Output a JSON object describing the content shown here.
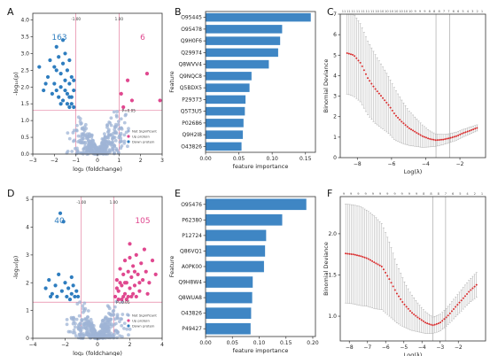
{
  "panels": {
    "A": "A",
    "B": "B",
    "C": "C",
    "D": "D",
    "E": "E",
    "F": "F"
  },
  "colors": {
    "not_significant": "#9fb4d6",
    "up": "#e0488f",
    "down": "#2e7dbf",
    "bar": "#3f86c4",
    "cv_point": "#d62728",
    "cv_error": "#a8a8a8",
    "threshold": "#e06a8f",
    "lambda_line": "#9a9a9a"
  },
  "chart_data": [
    {
      "id": "A",
      "type": "scatter",
      "xlabel": "log₂ (foldchange)",
      "ylabel": "-log₁₀(p)",
      "xlim": [
        -3,
        3
      ],
      "ylim": [
        0,
        4.2
      ],
      "xticks": [
        "−3",
        "−2",
        "−1",
        "0",
        "1",
        "2",
        "3"
      ],
      "yticks": [
        "0.0",
        "0.5",
        "1.0",
        "1.5",
        "2.0",
        "2.5",
        "3.0",
        "3.5",
        "4.0"
      ],
      "count_down": "163",
      "count_up": "6",
      "fc_threshold_labels": [
        "-1.00",
        "1.00"
      ],
      "fc_thresholds": [
        -1,
        1
      ],
      "p_threshold_label": "P=0.05",
      "p_threshold": 1.301,
      "legend": [
        "Not Significant",
        "Up protein",
        "Down protein"
      ],
      "up_points": [
        [
          1.1,
          1.8
        ],
        [
          1.4,
          2.2
        ],
        [
          1.6,
          1.6
        ],
        [
          2.3,
          2.4
        ],
        [
          2.9,
          1.6
        ],
        [
          1.2,
          1.4
        ]
      ],
      "down_points": [
        [
          -2.7,
          2.6
        ],
        [
          -2.5,
          1.9
        ],
        [
          -2.3,
          2.3
        ],
        [
          -2.2,
          2.8
        ],
        [
          -2.1,
          1.8
        ],
        [
          -2.0,
          2.1
        ],
        [
          -1.9,
          3.2
        ],
        [
          -1.9,
          2.5
        ],
        [
          -1.8,
          1.7
        ],
        [
          -1.8,
          2.9
        ],
        [
          -1.7,
          2.0
        ],
        [
          -1.7,
          2.4
        ],
        [
          -1.6,
          1.6
        ],
        [
          -1.6,
          3.4
        ],
        [
          -1.6,
          2.7
        ],
        [
          -1.5,
          1.9
        ],
        [
          -1.5,
          2.2
        ],
        [
          -1.5,
          3.0
        ],
        [
          -1.4,
          1.5
        ],
        [
          -1.4,
          2.5
        ],
        [
          -1.4,
          1.8
        ],
        [
          -1.3,
          2.1
        ],
        [
          -1.3,
          1.4
        ],
        [
          -1.3,
          2.8
        ],
        [
          -1.2,
          1.7
        ],
        [
          -1.2,
          2.3
        ],
        [
          -1.2,
          1.5
        ],
        [
          -1.1,
          1.9
        ],
        [
          -1.1,
          1.4
        ],
        [
          -1.1,
          2.2
        ],
        [
          -2.4,
          2.1
        ],
        [
          -2.0,
          2.6
        ],
        [
          -1.7,
          1.5
        ],
        [
          -1.9,
          1.9
        ],
        [
          -1.3,
          1.7
        ]
      ]
    },
    {
      "id": "B",
      "type": "bar",
      "orientation": "horizontal",
      "xlabel": "feature importance",
      "ylabel": "Feature",
      "xlim": [
        0,
        0.165
      ],
      "xticks": [
        "0.00",
        "0.05",
        "0.10",
        "0.15"
      ],
      "categories": [
        "O95445",
        "O95478",
        "Q9H0F6",
        "Q29974",
        "Q8WVV4",
        "Q9NQC8",
        "Q5BDX5",
        "P29373",
        "Q5T3U5",
        "P02686",
        "Q9H2I8",
        "O43826"
      ],
      "values": [
        0.158,
        0.115,
        0.112,
        0.109,
        0.095,
        0.069,
        0.066,
        0.06,
        0.059,
        0.057,
        0.056,
        0.054
      ]
    },
    {
      "id": "C",
      "type": "line",
      "xlabel": "Log(λ)",
      "ylabel": "Binomial Deviance",
      "xlim": [
        -9,
        -0.5
      ],
      "ylim": [
        0,
        7
      ],
      "xticks": [
        "−8",
        "−6",
        "−4",
        "−2"
      ],
      "yticks": [
        "0",
        "1",
        "2",
        "3",
        "4",
        "5",
        "6",
        "7"
      ],
      "top_labels": [
        "11",
        "11",
        "11",
        "11",
        "11",
        "11",
        "11",
        "10",
        "10",
        "10",
        "10",
        "10",
        "10",
        "10",
        "10",
        "9",
        "9",
        "9",
        "8",
        "8",
        "8",
        "7",
        "7",
        "6",
        "6",
        "5",
        "4",
        "3",
        "2",
        "1"
      ],
      "lambda_min": -3.4,
      "lambda_1se": -2.6,
      "x": [
        -8.6,
        -8.2,
        -7.8,
        -7.4,
        -7.0,
        -6.6,
        -6.2,
        -5.8,
        -5.4,
        -5.0,
        -4.6,
        -4.2,
        -3.8,
        -3.4,
        -3.0,
        -2.6,
        -2.2,
        -1.8,
        -1.4,
        -1.0
      ],
      "y": [
        5.1,
        5.0,
        4.6,
        3.9,
        3.4,
        3.0,
        2.6,
        2.1,
        1.75,
        1.45,
        1.25,
        1.05,
        0.92,
        0.85,
        0.88,
        0.95,
        1.05,
        1.2,
        1.32,
        1.45
      ],
      "err": [
        2.0,
        2.0,
        1.9,
        1.8,
        1.7,
        1.55,
        1.4,
        1.25,
        1.05,
        0.85,
        0.7,
        0.55,
        0.4,
        0.3,
        0.25,
        0.22,
        0.2,
        0.18,
        0.17,
        0.15
      ]
    },
    {
      "id": "D",
      "type": "scatter",
      "xlabel": "log₂ (foldchange)",
      "ylabel": "-log₁₀(p)",
      "xlim": [
        -4,
        4
      ],
      "ylim": [
        0,
        5.1
      ],
      "xticks": [
        "−4",
        "−2",
        "0",
        "2",
        "4"
      ],
      "yticks": [
        "0",
        "1",
        "2",
        "3",
        "4",
        "5"
      ],
      "count_down": "40",
      "count_up": "105",
      "fc_threshold_labels": [
        "-1.00",
        "1.00"
      ],
      "fc_thresholds": [
        -1,
        1
      ],
      "p_threshold_label": "P=0.05",
      "p_threshold": 1.301,
      "legend": [
        "Not Significant",
        "Up protein",
        "Down protein"
      ],
      "up_points": [
        [
          1.1,
          1.5
        ],
        [
          1.2,
          2.1
        ],
        [
          1.3,
          1.7
        ],
        [
          1.4,
          2.5
        ],
        [
          1.5,
          1.4
        ],
        [
          1.5,
          1.9
        ],
        [
          1.6,
          2.3
        ],
        [
          1.7,
          1.6
        ],
        [
          1.7,
          2.8
        ],
        [
          1.8,
          2.0
        ],
        [
          1.9,
          1.5
        ],
        [
          1.9,
          2.4
        ],
        [
          2.0,
          1.8
        ],
        [
          2.0,
          2.9
        ],
        [
          2.1,
          2.2
        ],
        [
          2.2,
          1.6
        ],
        [
          2.2,
          2.6
        ],
        [
          2.3,
          1.9
        ],
        [
          2.4,
          3.0
        ],
        [
          2.5,
          2.3
        ],
        [
          2.6,
          1.7
        ],
        [
          2.7,
          2.7
        ],
        [
          2.8,
          2.1
        ],
        [
          2.9,
          3.2
        ],
        [
          3.0,
          2.4
        ],
        [
          3.2,
          2.0
        ],
        [
          3.4,
          2.8
        ],
        [
          3.6,
          2.3
        ],
        [
          1.3,
          1.4
        ],
        [
          1.6,
          1.5
        ],
        [
          1.8,
          1.4
        ],
        [
          2.1,
          1.5
        ],
        [
          2.4,
          1.5
        ],
        [
          1.2,
          1.8
        ],
        [
          1.4,
          2.0
        ],
        [
          2.6,
          2.0
        ],
        [
          3.1,
          1.6
        ],
        [
          2.0,
          3.4
        ],
        [
          1.7,
          2.0
        ],
        [
          2.3,
          2.4
        ]
      ],
      "down_points": [
        [
          -3.2,
          1.8
        ],
        [
          -3.0,
          2.1
        ],
        [
          -2.8,
          1.6
        ],
        [
          -2.6,
          1.9
        ],
        [
          -2.5,
          1.5
        ],
        [
          -2.4,
          2.3
        ],
        [
          -2.2,
          1.7
        ],
        [
          -2.0,
          2.0
        ],
        [
          -1.9,
          1.5
        ],
        [
          -1.8,
          1.8
        ],
        [
          -1.7,
          1.4
        ],
        [
          -1.6,
          1.6
        ],
        [
          -1.5,
          1.9
        ],
        [
          -1.4,
          1.5
        ],
        [
          -1.3,
          1.7
        ],
        [
          -2.3,
          4.5
        ],
        [
          -2.1,
          4.2
        ],
        [
          -2.9,
          1.5
        ],
        [
          -1.6,
          2.2
        ],
        [
          -1.2,
          1.5
        ]
      ]
    },
    {
      "id": "E",
      "type": "bar",
      "orientation": "horizontal",
      "xlabel": "feature importance",
      "ylabel": "Feature",
      "xlim": [
        0,
        0.205
      ],
      "xticks": [
        "0.00",
        "0.05",
        "0.10",
        "0.15",
        "0.20"
      ],
      "categories": [
        "O95476",
        "P62380",
        "P12724",
        "Q86VQ1",
        "A0PK00",
        "Q9H8W4",
        "Q8WUA8",
        "O43826",
        "P49427"
      ],
      "values": [
        0.188,
        0.143,
        0.113,
        0.111,
        0.109,
        0.088,
        0.087,
        0.085,
        0.084
      ]
    },
    {
      "id": "F",
      "type": "line",
      "xlabel": "Log(λ)",
      "ylabel": "Binomial Deviance",
      "xlim": [
        -8.5,
        -0.5
      ],
      "ylim": [
        0.7,
        2.45
      ],
      "xticks": [
        "−8",
        "−7",
        "−6",
        "−5",
        "−4",
        "−3",
        "−2"
      ],
      "yticks": [
        "1.0",
        "1.5",
        "2.0"
      ],
      "top_labels": [
        "9",
        "9",
        "9",
        "9",
        "9",
        "9",
        "9",
        "9",
        "9",
        "9",
        "9",
        "8",
        "8",
        "8",
        "7",
        "6",
        "5",
        "4",
        "2",
        "1"
      ],
      "lambda_min": -3.4,
      "lambda_1se": -2.7,
      "x": [
        -8.2,
        -7.8,
        -7.4,
        -7.0,
        -6.6,
        -6.2,
        -5.8,
        -5.4,
        -5.0,
        -4.6,
        -4.2,
        -3.8,
        -3.4,
        -3.0,
        -2.6,
        -2.2,
        -1.8,
        -1.4,
        -1.0
      ],
      "y": [
        1.76,
        1.75,
        1.73,
        1.7,
        1.65,
        1.6,
        1.45,
        1.28,
        1.15,
        1.05,
        0.98,
        0.92,
        0.89,
        0.92,
        1.0,
        1.1,
        1.2,
        1.3,
        1.38
      ],
      "err": [
        0.6,
        0.6,
        0.6,
        0.58,
        0.56,
        0.52,
        0.45,
        0.36,
        0.28,
        0.22,
        0.17,
        0.13,
        0.1,
        0.1,
        0.11,
        0.12,
        0.13,
        0.14,
        0.15
      ]
    }
  ]
}
